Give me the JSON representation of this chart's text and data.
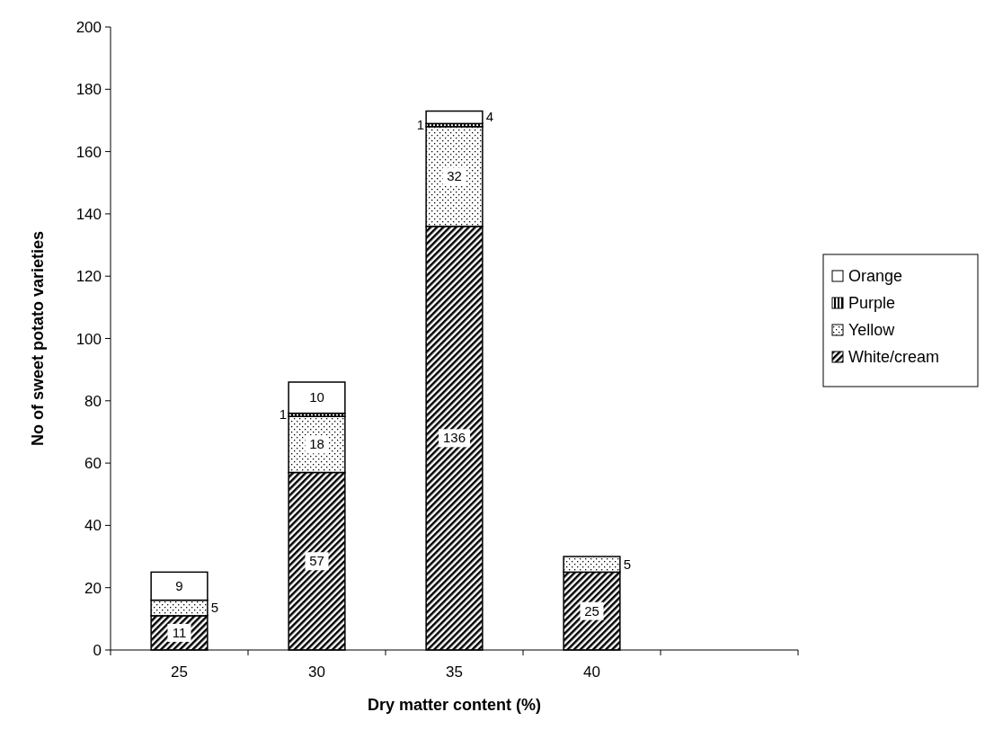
{
  "chart_data": {
    "type": "bar",
    "stacked": true,
    "xlabel": "Dry matter content (%)",
    "ylabel": "No of sweet potato varieties",
    "categories": [
      "25",
      "30",
      "35",
      "40",
      null
    ],
    "series": [
      {
        "name": "White/cream",
        "color": "#000000",
        "values": [
          11,
          57,
          136,
          25,
          null
        ]
      },
      {
        "name": "Yellow",
        "color": "#000000",
        "values": [
          5,
          18,
          32,
          5,
          null
        ]
      },
      {
        "name": "Purple",
        "color": "#000000",
        "values": [
          null,
          1,
          1,
          null,
          null
        ]
      },
      {
        "name": "Orange",
        "color": "#ffffff",
        "values": [
          9,
          10,
          4,
          null,
          null
        ]
      }
    ],
    "ylim": [
      0,
      200
    ],
    "yticks": [
      0,
      20,
      40,
      60,
      80,
      100,
      120,
      140,
      160,
      180,
      200
    ],
    "grid": false,
    "legend": "right",
    "data_labels": true
  }
}
